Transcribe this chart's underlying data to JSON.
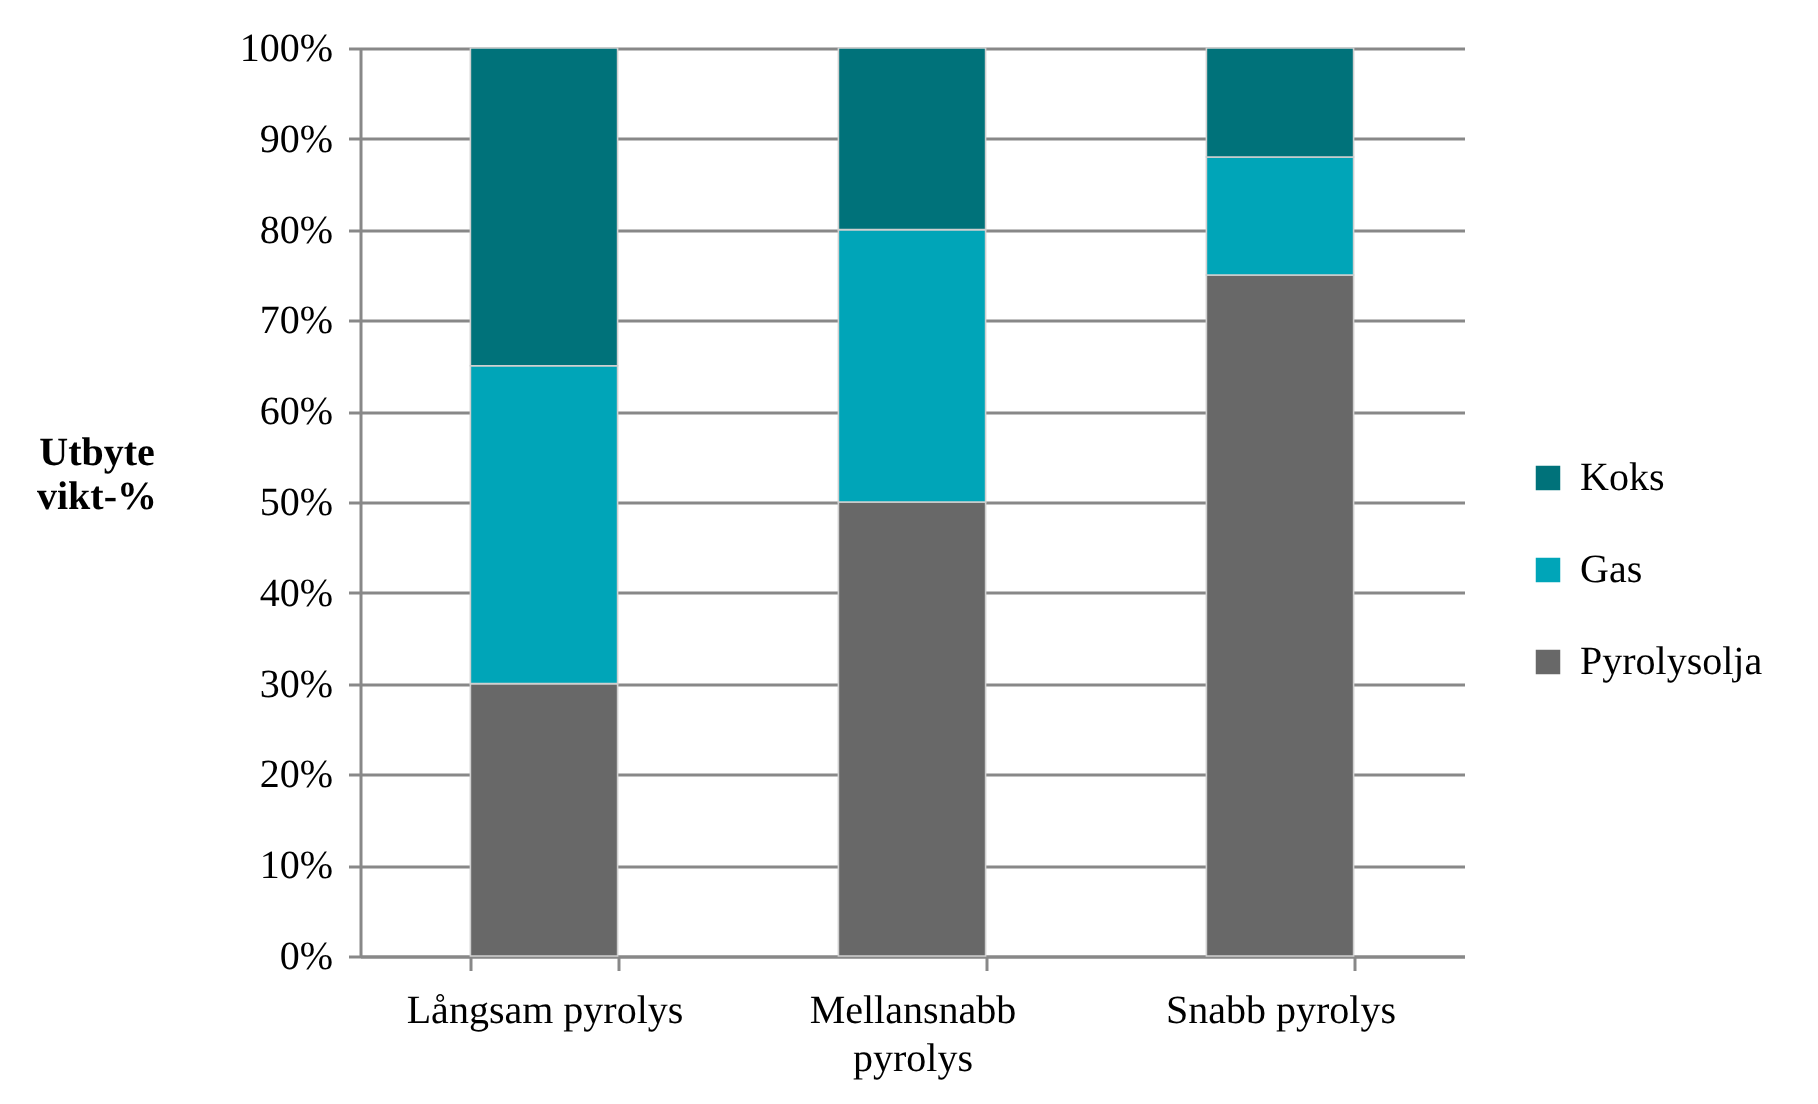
{
  "chart_data": {
    "type": "bar",
    "ylabel": "Utbyte vikt-%",
    "categories": [
      "Långsam pyrolys",
      "Mellansnabb pyrolys",
      "Snabb pyrolys"
    ],
    "series": [
      {
        "name": "Pyrolysolja",
        "color": "#686868",
        "values": [
          30,
          50,
          75
        ]
      },
      {
        "name": "Gas",
        "color": "#00a5b8",
        "values": [
          35,
          30,
          13
        ]
      },
      {
        "name": "Koks",
        "color": "#00727a",
        "values": [
          35,
          20,
          12
        ]
      }
    ],
    "stacked": true,
    "ylim": [
      0,
      100
    ],
    "yticks": [
      {
        "value": 0,
        "label": "0%"
      },
      {
        "value": 10,
        "label": "10%"
      },
      {
        "value": 20,
        "label": "20%"
      },
      {
        "value": 30,
        "label": "30%"
      },
      {
        "value": 40,
        "label": "40%"
      },
      {
        "value": 50,
        "label": "50%"
      },
      {
        "value": 60,
        "label": "60%"
      },
      {
        "value": 70,
        "label": "70%"
      },
      {
        "value": 80,
        "label": "80%"
      },
      {
        "value": 90,
        "label": "90%"
      },
      {
        "value": 100,
        "label": "100%"
      }
    ],
    "grid": "y",
    "legend": "right"
  }
}
